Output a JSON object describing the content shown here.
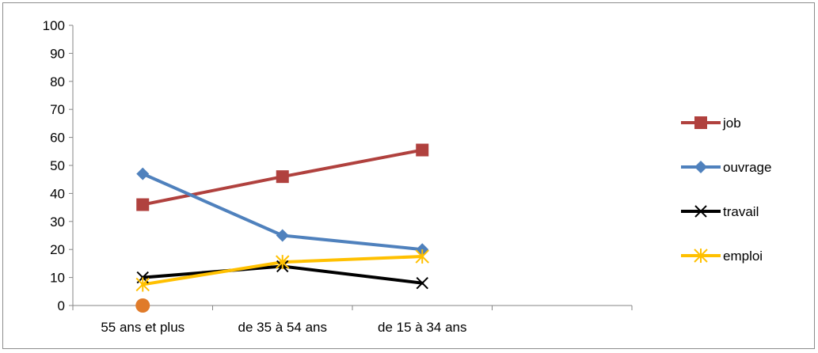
{
  "chart_data": {
    "type": "line",
    "categories": [
      "55 ans et plus",
      "de 35 à  54 ans",
      "de 15 à  34 ans",
      ""
    ],
    "ylim": [
      0,
      100
    ],
    "yticks": [
      "0",
      "10",
      "20",
      "30",
      "40",
      "50",
      "60",
      "70",
      "80",
      "90",
      "100"
    ],
    "grid": false,
    "legend_position": "right",
    "series": [
      {
        "name": "job",
        "values": [
          36,
          46,
          55.5,
          null
        ],
        "color": "#b0413e",
        "marker": "square"
      },
      {
        "name": "ouvrage",
        "values": [
          47,
          25,
          20,
          null
        ],
        "color": "#4f81bd",
        "marker": "diamond"
      },
      {
        "name": "travail",
        "values": [
          10,
          14,
          8,
          null
        ],
        "color": "#000000",
        "marker": "x"
      },
      {
        "name": "emploi",
        "values": [
          7.5,
          15.5,
          17.5,
          null
        ],
        "color": "#ffc000",
        "marker": "star"
      }
    ],
    "extra_point": {
      "category_index": 0,
      "value": 0,
      "color": "#e07b2a",
      "marker": "circle"
    }
  }
}
